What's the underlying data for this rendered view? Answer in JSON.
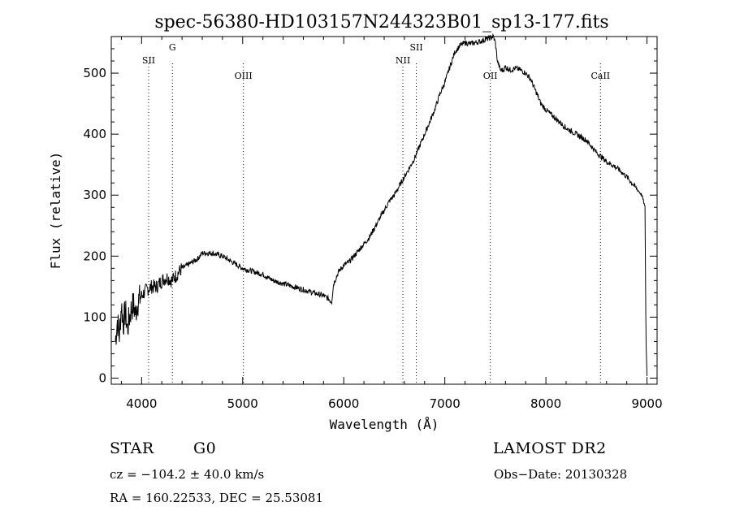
{
  "chart_data": {
    "type": "line",
    "title": "spec-56380-HD103157N244323B01_sp13-177.fits",
    "xlabel": "Wavelength (Å)",
    "ylabel": "Flux (relative)",
    "xlim": [
      3700,
      9100
    ],
    "ylim": [
      -10,
      560
    ],
    "xticks": [
      4000,
      5000,
      6000,
      7000,
      8000,
      9000
    ],
    "yticks": [
      0,
      100,
      200,
      300,
      400,
      500
    ],
    "grid": false,
    "line_color": "#000000",
    "lines": [
      {
        "label": "SII",
        "x": 4070
      },
      {
        "label": "G",
        "x": 4305
      },
      {
        "label": "OIII",
        "x": 5007
      },
      {
        "label": "NII",
        "x": 6585
      },
      {
        "label": "SII",
        "x": 6718
      },
      {
        "label": "OII",
        "x": 7450
      },
      {
        "label": "CaII",
        "x": 8540
      }
    ],
    "series": [
      {
        "x": [
          3740,
          3760,
          3780,
          3800,
          3820,
          3840,
          3860,
          3880,
          3900,
          3920,
          3940,
          3960,
          3980,
          4000,
          4050,
          4100,
          4150,
          4200,
          4250,
          4300,
          4350,
          4400,
          4450,
          4500,
          4550,
          4600,
          4700,
          4800,
          4900,
          5000,
          5100,
          5200,
          5300,
          5400,
          5500,
          5600,
          5700,
          5800,
          5850,
          5880,
          5900,
          5950,
          6000,
          6050,
          6100,
          6150,
          6200,
          6250,
          6300,
          6350,
          6400,
          6450,
          6500,
          6550,
          6600,
          6650,
          6700,
          6750,
          6800,
          6850,
          6900,
          6950,
          7000,
          7050,
          7100,
          7150,
          7200,
          7250,
          7300,
          7350,
          7400,
          7450,
          7480,
          7500,
          7520,
          7550,
          7580,
          7600,
          7650,
          7700,
          7750,
          7800,
          7850,
          7900,
          7950,
          8000,
          8100,
          8200,
          8300,
          8400,
          8500,
          8600,
          8700,
          8800,
          8900,
          8950,
          8980,
          8990,
          9000
        ],
        "y": [
          60,
          95,
          70,
          120,
          90,
          110,
          80,
          100,
          115,
          120,
          105,
          125,
          130,
          135,
          145,
          150,
          150,
          160,
          165,
          160,
          170,
          180,
          185,
          190,
          195,
          205,
          205,
          200,
          190,
          180,
          175,
          170,
          160,
          155,
          150,
          145,
          140,
          135,
          130,
          125,
          155,
          175,
          185,
          190,
          200,
          210,
          220,
          230,
          245,
          260,
          275,
          290,
          300,
          315,
          330,
          345,
          360,
          380,
          400,
          420,
          440,
          465,
          485,
          510,
          535,
          545,
          550,
          548,
          550,
          552,
          555,
          558,
          560,
          550,
          520,
          505,
          505,
          510,
          505,
          508,
          505,
          500,
          490,
          470,
          450,
          440,
          425,
          410,
          400,
          390,
          370,
          355,
          345,
          330,
          310,
          300,
          280,
          60,
          5
        ]
      }
    ],
    "annotations": {
      "left_line1_a": "STAR",
      "left_line1_b": "G0",
      "right_line1": "LAMOST DR2",
      "left_line2": "cz = −104.2 ± 40.0 km/s",
      "right_line2": "Obs−Date: 20130328",
      "left_line3": "RA = 160.22533, DEC =  25.53081"
    }
  }
}
